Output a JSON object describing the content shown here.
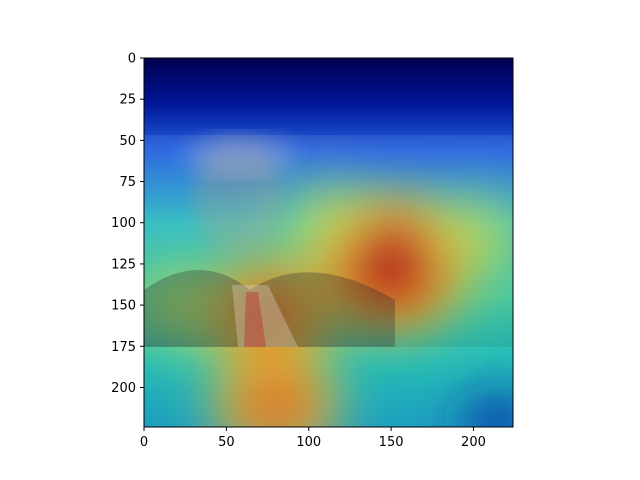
{
  "chart_data": {
    "type": "heatmap",
    "title": "",
    "xlabel": "",
    "ylabel": "",
    "colormap": "jet",
    "overlay": "photo-portrait-of-man-in-suit-and-red-tie",
    "xlim": [
      0,
      224
    ],
    "ylim": [
      224,
      0
    ],
    "x_ticks": [
      0,
      50,
      100,
      150,
      200
    ],
    "x_tick_labels": [
      "0",
      "50",
      "100",
      "150",
      "200"
    ],
    "y_ticks": [
      0,
      25,
      50,
      75,
      100,
      125,
      150,
      175,
      200
    ],
    "y_tick_labels": [
      "0",
      "25",
      "50",
      "75",
      "100",
      "125",
      "150",
      "175",
      "200"
    ],
    "photo_extent_y": [
      47,
      175
    ],
    "hotspots": [
      {
        "x": 150,
        "y": 125,
        "intensity": 1.0
      },
      {
        "x": 75,
        "y": 155,
        "intensity": 0.85
      },
      {
        "x": 80,
        "y": 210,
        "intensity": 0.8
      },
      {
        "x": 200,
        "y": 110,
        "intensity": 0.7
      },
      {
        "x": 110,
        "y": 100,
        "intensity": 0.6
      },
      {
        "x": 20,
        "y": 150,
        "intensity": 0.6
      }
    ],
    "colors": {
      "low": "#00007f",
      "mid": "#2ad4c0",
      "high": "#cc1010",
      "axis": "#000000"
    }
  }
}
